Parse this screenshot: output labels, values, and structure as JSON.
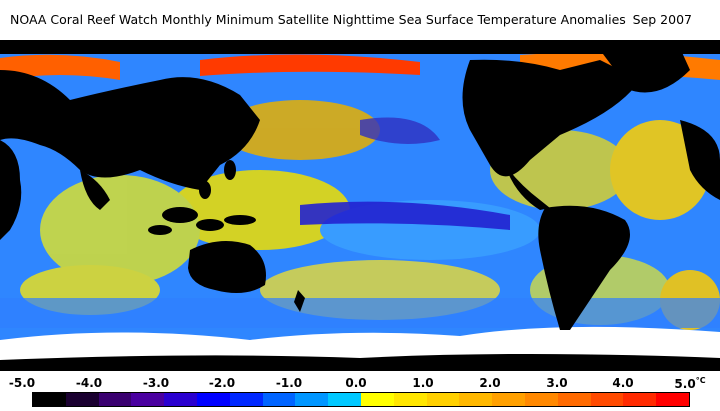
{
  "title": "NOAA Coral Reef Watch Monthly Minimum Satellite Nighttime Sea Surface Temperature Anomalies",
  "date": "Sep 2007",
  "scale": {
    "labels": [
      "-5.0",
      "-4.0",
      "-3.0",
      "-2.0",
      "-1.0",
      "0.0",
      "1.0",
      "2.0",
      "3.0",
      "4.0",
      "5.0"
    ],
    "unit": "°C",
    "colors": [
      "#000000",
      "#1a0030",
      "#3a0070",
      "#4a00a0",
      "#2a00d0",
      "#0000ff",
      "#0028ff",
      "#0064ff",
      "#0096ff",
      "#00c8ff",
      "#ffff00",
      "#ffe600",
      "#ffd000",
      "#ffb800",
      "#ffa000",
      "#ff8800",
      "#ff6a00",
      "#ff4a00",
      "#ff2a00",
      "#ff0000"
    ]
  }
}
